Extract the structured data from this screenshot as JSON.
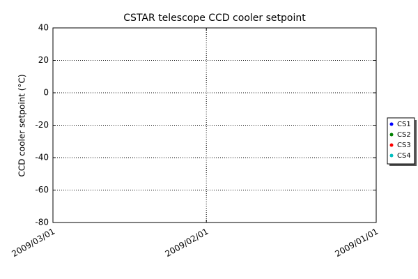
{
  "chart_data": {
    "type": "scatter",
    "title": "CSTAR telescope CCD cooler setpoint",
    "y_label": "CCD cooler setpoint (°C)",
    "xlim": [
      "2009/03/01",
      "2009/01/01"
    ],
    "xticks": [
      "2009/03/01",
      "2009/02/01",
      "2009/01/01"
    ],
    "ylim": [
      -80,
      40
    ],
    "yticks": [
      -80,
      -60,
      -40,
      -20,
      0,
      20,
      40
    ],
    "grid": true,
    "legend": "right",
    "x": [],
    "series": [
      {
        "name": "CS1",
        "color": "#0000ff",
        "values": []
      },
      {
        "name": "CS2",
        "color": "#008000",
        "values": []
      },
      {
        "name": "CS3",
        "color": "#ff0000",
        "values": []
      },
      {
        "name": "CS4",
        "color": "#00bfbf",
        "values": []
      }
    ]
  }
}
